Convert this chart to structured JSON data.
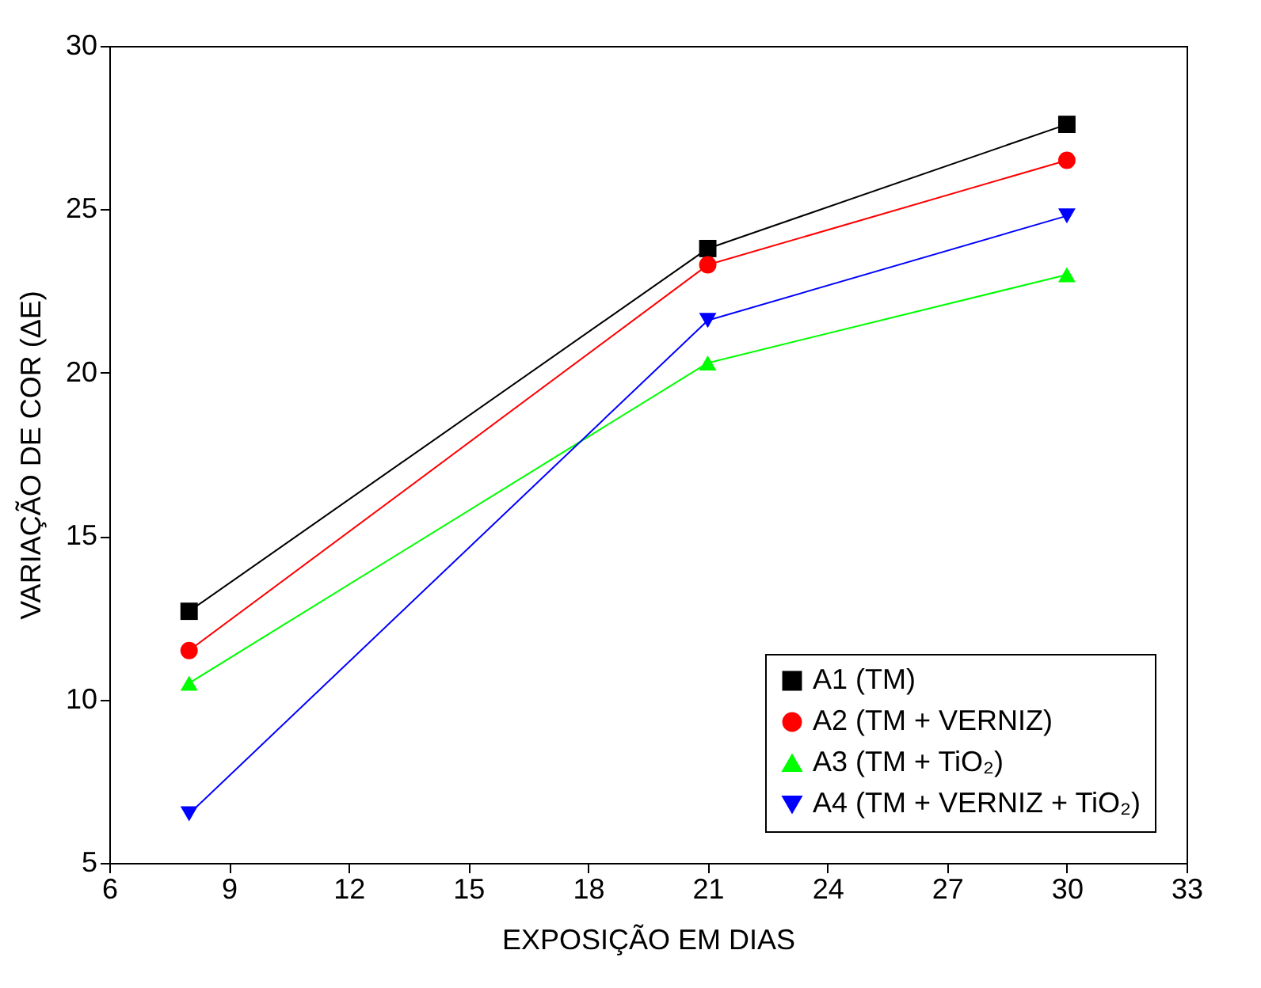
{
  "chart_data": {
    "type": "line",
    "xlabel": "EXPOSIÇÃO EM DIAS",
    "ylabel": "VARIAÇÃO DE COR (ΔE)",
    "x": [
      8,
      21,
      30
    ],
    "series": [
      {
        "name": "A1 (TM)",
        "color": "#000000",
        "marker": "square",
        "values": [
          12.7,
          23.8,
          27.6
        ]
      },
      {
        "name": "A2 (TM + VERNIZ)",
        "color": "#ff0000",
        "marker": "circle",
        "values": [
          11.5,
          23.3,
          26.5
        ]
      },
      {
        "name": "A3 (TM + TiO₂)",
        "color": "#00ff00",
        "marker": "triangle",
        "values": [
          10.5,
          20.3,
          23.0
        ]
      },
      {
        "name": "A4 (TM + VERNIZ + TiO₂)",
        "color": "#0000ff",
        "marker": "triangle-down",
        "values": [
          6.5,
          21.6,
          24.8
        ]
      }
    ],
    "xlim": [
      6,
      33
    ],
    "xticks": [
      6,
      9,
      12,
      15,
      18,
      21,
      24,
      27,
      30,
      33
    ],
    "ylim": [
      5,
      30
    ],
    "yticks": [
      5,
      10,
      15,
      20,
      25,
      30
    ],
    "grid": false,
    "legend": "bottom right"
  }
}
